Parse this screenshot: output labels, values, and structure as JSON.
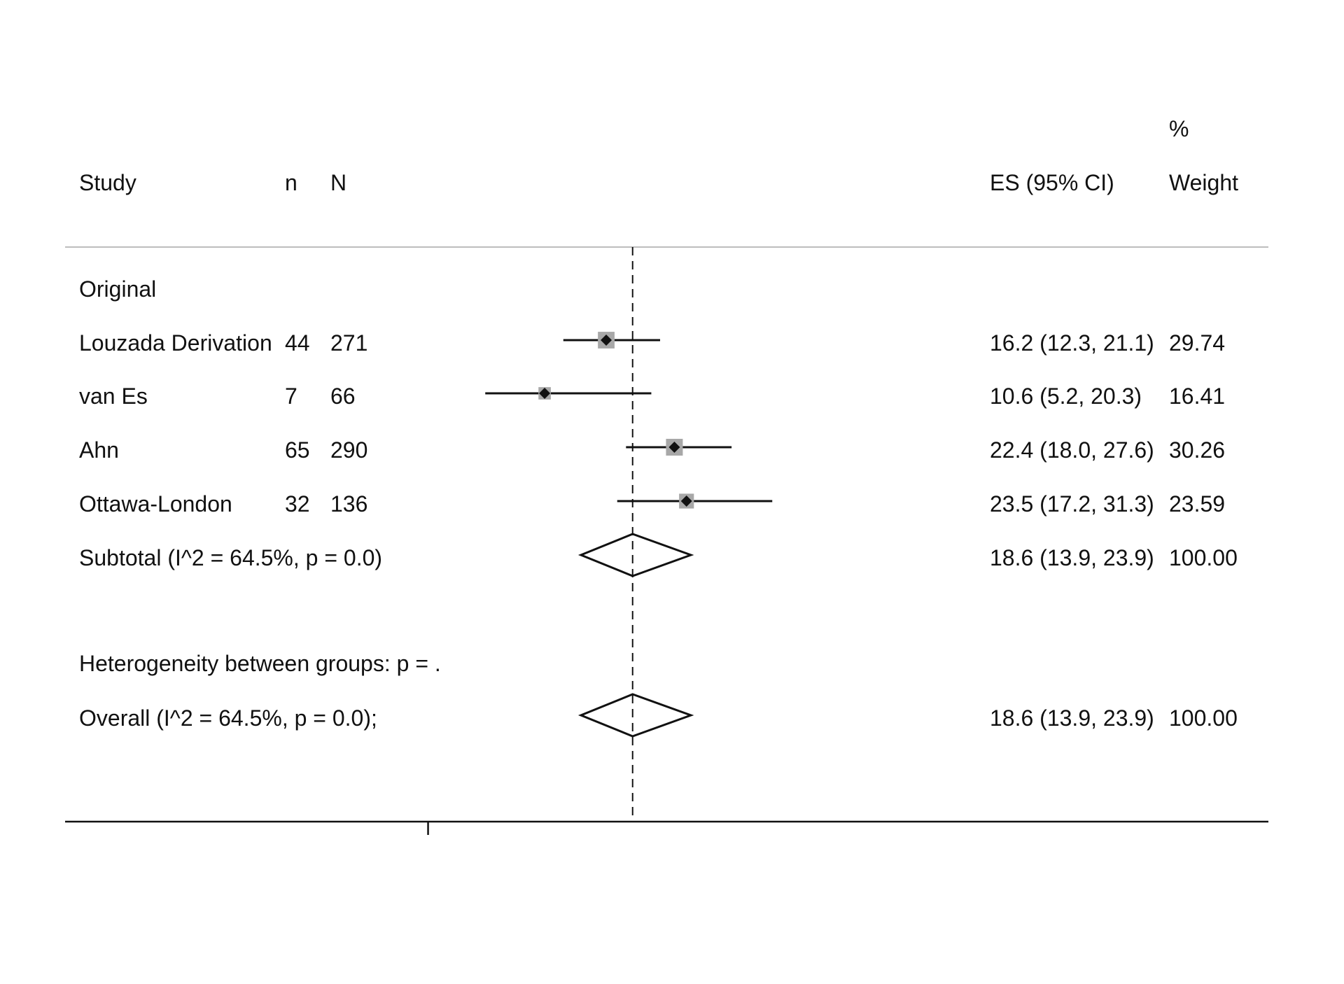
{
  "chart_data": {
    "type": "forest",
    "title": "",
    "xlabel": "",
    "ylabel": "",
    "headers": {
      "study": "Study",
      "n": "n",
      "N": "N",
      "es": "ES (95% CI)",
      "weight_top": "%",
      "weight": "Weight"
    },
    "group_label": "Original",
    "xlim": [
      -5,
      50
    ],
    "reference_line": 18.6,
    "x_ticks": [
      0
    ],
    "x_tick_labels": [
      ""
    ],
    "studies": [
      {
        "name": "Louzada Derivation",
        "n": "44",
        "N": "271",
        "es": 16.2,
        "lo": 12.3,
        "hi": 21.1,
        "weight": 29.74,
        "es_text": "16.2 (12.3, 21.1)",
        "weight_text": "29.74"
      },
      {
        "name": "van Es",
        "n": "7",
        "N": "66",
        "es": 10.6,
        "lo": 5.2,
        "hi": 20.3,
        "weight": 16.41,
        "es_text": "10.6 (5.2, 20.3)",
        "weight_text": "16.41"
      },
      {
        "name": "Ahn",
        "n": "65",
        "N": "290",
        "es": 22.4,
        "lo": 18.0,
        "hi": 27.6,
        "weight": 30.26,
        "es_text": "22.4 (18.0, 27.6)",
        "weight_text": "30.26"
      },
      {
        "name": "Ottawa-London",
        "n": "32",
        "N": "136",
        "es": 23.5,
        "lo": 17.2,
        "hi": 31.3,
        "weight": 23.59,
        "es_text": "23.5 (17.2, 31.3)",
        "weight_text": "23.59"
      }
    ],
    "subtotal": {
      "label": "Subtotal  (I^2 = 64.5%, p = 0.0)",
      "es": 18.6,
      "lo": 13.9,
      "hi": 23.9,
      "es_text": "18.6 (13.9, 23.9)",
      "weight_text": "100.00"
    },
    "heterogeneity": "Heterogeneity between groups: p = .",
    "overall": {
      "label": "Overall  (I^2 = 64.5%, p = 0.0);",
      "es": 18.6,
      "lo": 13.9,
      "hi": 23.9,
      "es_text": "18.6 (13.9, 23.9)",
      "weight_text": "100.00"
    },
    "colors": {
      "ci_line": "#111111",
      "point": "#111111",
      "weight_box": "#a8a8a8",
      "header_rule": "#bdbdbd",
      "axis": "#111111"
    }
  }
}
